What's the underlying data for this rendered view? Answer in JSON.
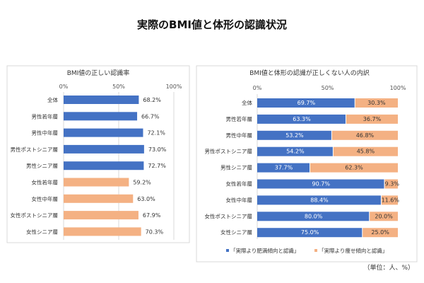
{
  "title": "実際のBMI値と体形の認識状況",
  "unit_note": "（単位：人、%）",
  "colors": {
    "blue": "#4472C4",
    "orange": "#F4B183"
  },
  "chart_data": [
    {
      "type": "bar",
      "title": "BMI値の正しい認識率",
      "categories": [
        "全体",
        "男性若年層",
        "男性中年層",
        "男性ポストシニア層",
        "男性シニア層",
        "女性若年層",
        "女性中年層",
        "女性ポストシニア層",
        "女性シニア層"
      ],
      "values": [
        68.2,
        66.7,
        72.1,
        73.0,
        72.7,
        59.2,
        63.0,
        67.9,
        70.3
      ],
      "labels": [
        "68.2%",
        "66.7%",
        "72.1%",
        "73.0%",
        "72.7%",
        "59.2%",
        "63.0%",
        "67.9%",
        "70.3%"
      ],
      "bar_colors": [
        "blue",
        "blue",
        "blue",
        "blue",
        "blue",
        "orange",
        "orange",
        "orange",
        "orange"
      ],
      "xticks": [
        "0%",
        "50%",
        "100%"
      ],
      "xlim": [
        0,
        100
      ]
    },
    {
      "type": "bar",
      "stacked": true,
      "title": "BMI値と体形の認識が正しくない人の内訳",
      "categories": [
        "全体",
        "男性若年層",
        "男性中年層",
        "男性ポストシニア層",
        "男性シニア層",
        "女性若年層",
        "女性中年層",
        "女性ポストシニア層",
        "女性シニア層"
      ],
      "series": [
        {
          "name": "「実際より肥満傾向と認識」",
          "color": "blue",
          "values": [
            69.7,
            63.3,
            53.2,
            54.2,
            37.7,
            90.7,
            88.4,
            80.0,
            75.0
          ],
          "labels": [
            "69.7%",
            "63.3%",
            "53.2%",
            "54.2%",
            "37.7%",
            "90.7%",
            "88.4%",
            "80.0%",
            "75.0%"
          ]
        },
        {
          "name": "「実際より痩せ傾向と認識」",
          "color": "orange",
          "values": [
            30.3,
            36.7,
            46.8,
            45.8,
            62.3,
            9.3,
            11.6,
            20.0,
            25.0
          ],
          "labels": [
            "30.3%",
            "36.7%",
            "46.8%",
            "45.8%",
            "62.3%",
            "9.3%",
            "11.6%",
            "20.0%",
            "25.0%"
          ]
        }
      ],
      "xticks": [
        "0%",
        "50%",
        "100%"
      ],
      "xlim": [
        0,
        100
      ],
      "legend": "bottom"
    }
  ]
}
